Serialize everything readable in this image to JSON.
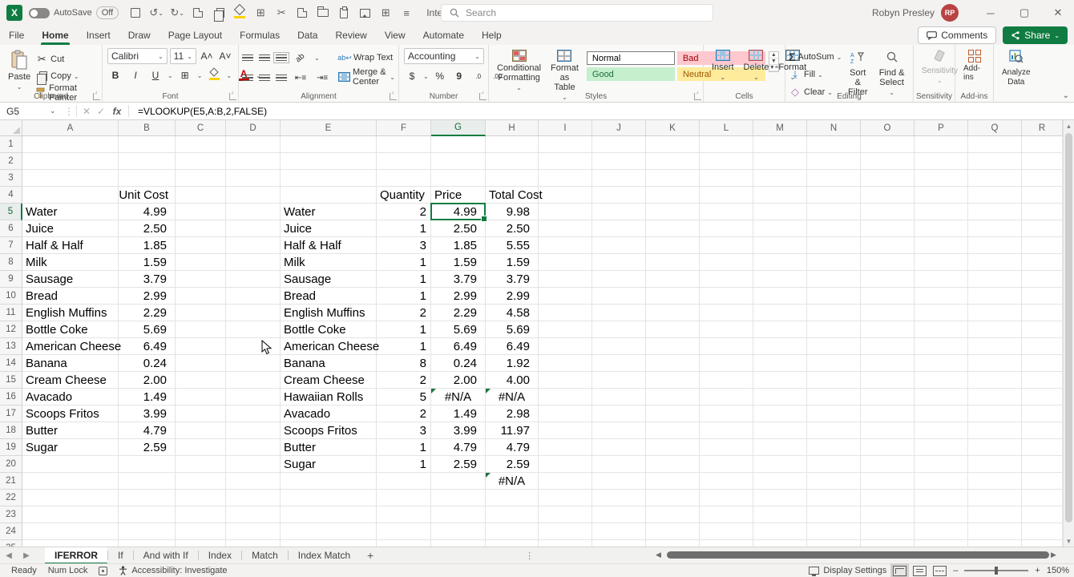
{
  "titlebar": {
    "autosave_label": "AutoSave",
    "autosave_state": "Off",
    "doc_title": "Intermediate Nesting Funct...",
    "search_placeholder": "Search",
    "user_name": "Robyn Presley",
    "user_initials": "RP"
  },
  "ribbon_tabs": {
    "items": [
      "File",
      "Home",
      "Insert",
      "Draw",
      "Page Layout",
      "Formulas",
      "Data",
      "Review",
      "View",
      "Automate",
      "Help"
    ],
    "active": "Home",
    "comments_label": "Comments",
    "share_label": "Share"
  },
  "ribbon": {
    "clipboard": {
      "paste": "Paste",
      "cut": "Cut",
      "copy": "Copy",
      "format_painter": "Format Painter",
      "label": "Clipboard"
    },
    "font": {
      "name": "Calibri",
      "size": "11",
      "bold": "B",
      "italic": "I",
      "underline": "U",
      "label": "Font"
    },
    "alignment": {
      "wrap": "Wrap Text",
      "merge": "Merge & Center",
      "label": "Alignment"
    },
    "number": {
      "format": "Accounting",
      "currency": "$",
      "percent": "%",
      "comma": "9",
      "inc_dec": ".0",
      "dec_dec": ".00",
      "label": "Number"
    },
    "styles": {
      "cond_l1": "Conditional",
      "cond_l2": "Formatting",
      "fat_l1": "Format as",
      "fat_l2": "Table",
      "gallery": [
        "Normal",
        "Bad",
        "Good",
        "Neutral"
      ],
      "label": "Styles"
    },
    "cells": {
      "insert": "Insert",
      "delete": "Delete",
      "format": "Format",
      "label": "Cells"
    },
    "editing": {
      "autosum": "AutoSum",
      "fill": "Fill",
      "clear": "Clear",
      "sort_l1": "Sort &",
      "sort_l2": "Filter",
      "find_l1": "Find &",
      "find_l2": "Select",
      "label": "Editing"
    },
    "sensitivity": {
      "button": "Sensitivity",
      "label": "Sensitivity"
    },
    "addins": {
      "button": "Add-ins",
      "label": "Add-ins"
    },
    "analyze": {
      "l1": "Analyze",
      "l2": "Data"
    }
  },
  "formula_bar": {
    "name_box": "G5",
    "fx_label": "fx",
    "formula": "=VLOOKUP(E5,A:B,2,FALSE)"
  },
  "grid": {
    "col_letters": [
      "A",
      "B",
      "C",
      "D",
      "E",
      "F",
      "G",
      "H",
      "I",
      "J",
      "K",
      "L",
      "M",
      "N",
      "O",
      "P",
      "Q",
      "R"
    ],
    "selected_col": "G",
    "selected_row": 5,
    "unit_header": "Unit Cost",
    "qty_header": "Quantity",
    "price_header": "Price",
    "total_header": "Total Cost",
    "left_rows": [
      [
        "Water",
        "4.99"
      ],
      [
        "Juice",
        "2.50"
      ],
      [
        "Half & Half",
        "1.85"
      ],
      [
        "Milk",
        "1.59"
      ],
      [
        "Sausage",
        "3.79"
      ],
      [
        "Bread",
        "2.99"
      ],
      [
        "English Muffins",
        "2.29"
      ],
      [
        "Bottle Coke",
        "5.69"
      ],
      [
        "American Cheese",
        "6.49"
      ],
      [
        "Banana",
        "0.24"
      ],
      [
        "Cream Cheese",
        "2.00"
      ],
      [
        "Avacado",
        "1.49"
      ],
      [
        "Scoops Fritos",
        "3.99"
      ],
      [
        "Butter",
        "4.79"
      ],
      [
        "Sugar",
        "2.59"
      ]
    ],
    "right_rows": [
      [
        "Water",
        "2",
        "4.99",
        "9.98"
      ],
      [
        "Juice",
        "1",
        "2.50",
        "2.50"
      ],
      [
        "Half & Half",
        "3",
        "1.85",
        "5.55"
      ],
      [
        "Milk",
        "1",
        "1.59",
        "1.59"
      ],
      [
        "Sausage",
        "1",
        "3.79",
        "3.79"
      ],
      [
        "Bread",
        "1",
        "2.99",
        "2.99"
      ],
      [
        "English Muffins",
        "2",
        "2.29",
        "4.58"
      ],
      [
        "Bottle Coke",
        "1",
        "5.69",
        "5.69"
      ],
      [
        "American Cheese",
        "1",
        "6.49",
        "6.49"
      ],
      [
        "Banana",
        "8",
        "0.24",
        "1.92"
      ],
      [
        "Cream Cheese",
        "2",
        "2.00",
        "4.00"
      ],
      [
        "Hawaiian Rolls",
        "5",
        "#N/A",
        "#N/A"
      ],
      [
        "Avacado",
        "2",
        "1.49",
        "2.98"
      ],
      [
        "Scoops Fritos",
        "3",
        "3.99",
        "11.97"
      ],
      [
        "Butter",
        "1",
        "4.79",
        "4.79"
      ],
      [
        "Sugar",
        "1",
        "2.59",
        "2.59"
      ]
    ],
    "h21_value": "#N/A",
    "error_cells": [
      "G16",
      "H16",
      "H21"
    ]
  },
  "sheet_tabs": {
    "tabs": [
      "IFERROR",
      "If",
      "And with If",
      "Index",
      "Match",
      "Index Match"
    ],
    "active": "IFERROR",
    "add_label": "+"
  },
  "status_bar": {
    "ready": "Ready",
    "numlock": "Num Lock",
    "accessibility": "Accessibility: Investigate",
    "display_settings": "Display Settings",
    "zoom": "150%"
  },
  "colors": {
    "excel_green": "#107C41",
    "bad_bg": "#FFC7CE",
    "bad_text": "#9C0006",
    "good_bg": "#C6EFCE",
    "good_text": "#1F6B3B",
    "neutral_bg": "#FFEB9C",
    "neutral_text": "#9C5700",
    "avatar_bg": "#B94343",
    "error_triangle": "#1E7145"
  },
  "icons": {
    "chevron_down": "⌄",
    "scissors": "✂",
    "undo": "↺",
    "redo": "↻",
    "borders": "⊞",
    "sigma": "Σ",
    "fill_down": "↓",
    "pencil": "✎",
    "dots_v": "⋮",
    "check": "✓",
    "close": "✕",
    "search": "⌕",
    "minus": "–",
    "plus": "+"
  }
}
